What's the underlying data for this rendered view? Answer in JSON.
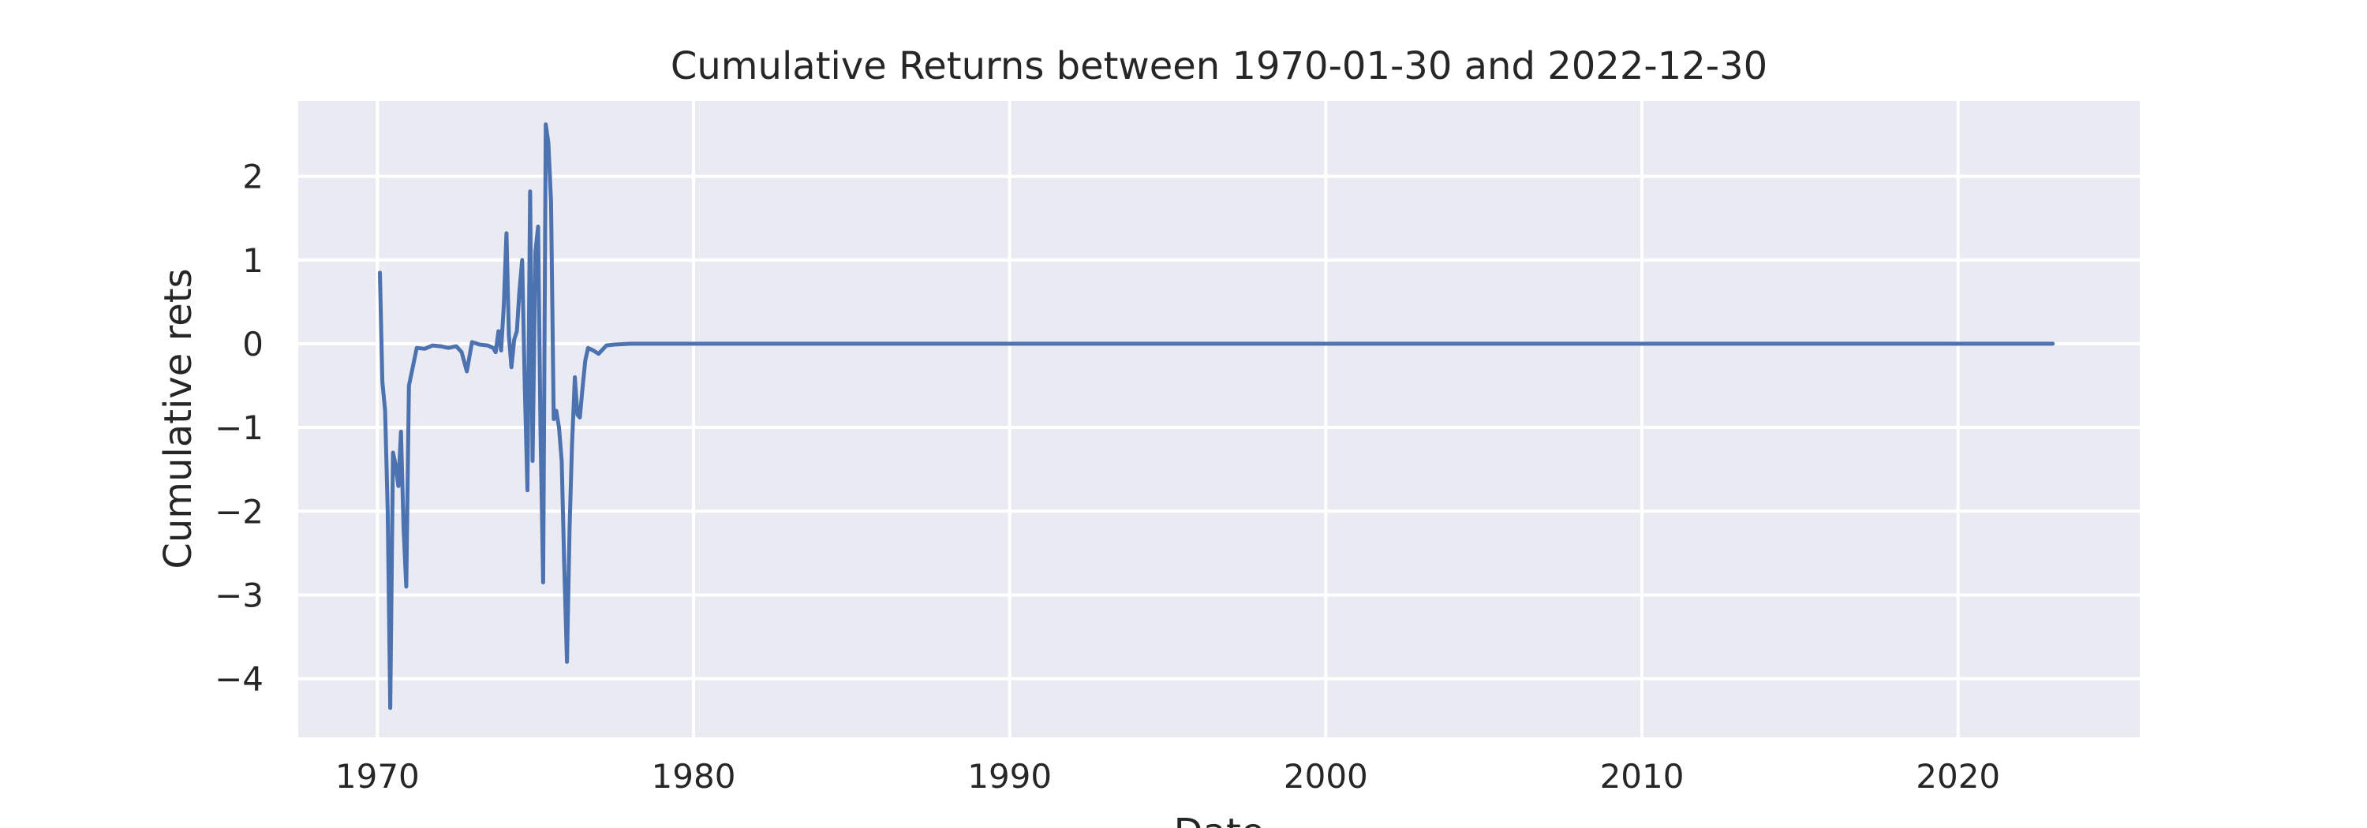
{
  "colors": {
    "plot_background": "#eaeaf2",
    "grid": "#ffffff",
    "series": "#4c72b0",
    "text": "#262626"
  },
  "chart_data": {
    "type": "line",
    "title": "Cumulative Returns between 1970-01-30 and 2022-12-30",
    "xlabel": "Date",
    "ylabel": "Cumulative rets",
    "x_scale": "date",
    "xlim": [
      "1967-07-01",
      "2025-10-01"
    ],
    "ylim": [
      -4.7,
      2.9
    ],
    "grid": true,
    "x_ticks": [
      {
        "value": "1970-01-01",
        "label": "1970"
      },
      {
        "value": "1980-01-01",
        "label": "1980"
      },
      {
        "value": "1990-01-01",
        "label": "1990"
      },
      {
        "value": "2000-01-01",
        "label": "2000"
      },
      {
        "value": "2010-01-01",
        "label": "2010"
      },
      {
        "value": "2020-01-01",
        "label": "2020"
      }
    ],
    "y_ticks": [
      {
        "value": 2,
        "label": "2"
      },
      {
        "value": 1,
        "label": "1"
      },
      {
        "value": 0,
        "label": "0"
      },
      {
        "value": -1,
        "label": "−1"
      },
      {
        "value": -2,
        "label": "−2"
      },
      {
        "value": -3,
        "label": "−3"
      },
      {
        "value": -4,
        "label": "−4"
      }
    ],
    "series": [
      {
        "points": [
          [
            "1970-01-30",
            0.85
          ],
          [
            "1970-02-27",
            -0.45
          ],
          [
            "1970-03-31",
            -0.8
          ],
          [
            "1970-04-30",
            -2.0
          ],
          [
            "1970-05-29",
            -4.35
          ],
          [
            "1970-06-30",
            -1.3
          ],
          [
            "1970-07-31",
            -1.45
          ],
          [
            "1970-08-31",
            -1.7
          ],
          [
            "1970-09-30",
            -1.05
          ],
          [
            "1970-10-30",
            -2.2
          ],
          [
            "1970-11-30",
            -2.9
          ],
          [
            "1970-12-31",
            -0.5
          ],
          [
            "1971-03-31",
            -0.05
          ],
          [
            "1971-06-30",
            -0.06
          ],
          [
            "1971-09-30",
            -0.02
          ],
          [
            "1971-12-31",
            -0.03
          ],
          [
            "1972-03-31",
            -0.05
          ],
          [
            "1972-06-30",
            -0.03
          ],
          [
            "1972-08-31",
            -0.1
          ],
          [
            "1972-10-31",
            -0.33
          ],
          [
            "1972-12-29",
            0.02
          ],
          [
            "1973-03-30",
            -0.01
          ],
          [
            "1973-06-29",
            -0.02
          ],
          [
            "1973-08-31",
            -0.05
          ],
          [
            "1973-09-28",
            -0.1
          ],
          [
            "1973-10-31",
            0.15
          ],
          [
            "1973-11-30",
            -0.08
          ],
          [
            "1973-12-31",
            0.45
          ],
          [
            "1974-01-31",
            1.32
          ],
          [
            "1974-02-28",
            0.1
          ],
          [
            "1974-03-29",
            -0.28
          ],
          [
            "1974-04-30",
            0.05
          ],
          [
            "1974-05-31",
            0.15
          ],
          [
            "1974-06-28",
            0.6
          ],
          [
            "1974-07-31",
            1.0
          ],
          [
            "1974-08-30",
            -0.5
          ],
          [
            "1974-09-30",
            -1.75
          ],
          [
            "1974-10-31",
            1.82
          ],
          [
            "1974-11-29",
            -1.4
          ],
          [
            "1974-12-31",
            1.1
          ],
          [
            "1975-01-31",
            1.4
          ],
          [
            "1975-02-28",
            -1.0
          ],
          [
            "1975-03-31",
            -2.85
          ],
          [
            "1975-04-30",
            2.62
          ],
          [
            "1975-05-30",
            2.4
          ],
          [
            "1975-06-30",
            1.7
          ],
          [
            "1975-07-31",
            -0.9
          ],
          [
            "1975-08-29",
            -0.8
          ],
          [
            "1975-09-30",
            -1.0
          ],
          [
            "1975-10-31",
            -1.4
          ],
          [
            "1975-11-28",
            -2.6
          ],
          [
            "1975-12-31",
            -3.8
          ],
          [
            "1976-01-30",
            -2.2
          ],
          [
            "1976-02-27",
            -1.2
          ],
          [
            "1976-03-31",
            -0.4
          ],
          [
            "1976-04-30",
            -0.85
          ],
          [
            "1976-05-28",
            -0.88
          ],
          [
            "1976-06-30",
            -0.5
          ],
          [
            "1976-07-30",
            -0.2
          ],
          [
            "1976-08-31",
            -0.05
          ],
          [
            "1976-10-29",
            -0.08
          ],
          [
            "1976-12-31",
            -0.12
          ],
          [
            "1977-03-31",
            -0.02
          ],
          [
            "1977-06-30",
            -0.01
          ],
          [
            "1977-12-30",
            0.0
          ],
          [
            "1978-12-29",
            0.0
          ],
          [
            "1985-12-31",
            0.0
          ],
          [
            "1995-12-29",
            0.0
          ],
          [
            "2005-12-30",
            0.0
          ],
          [
            "2015-12-31",
            0.0
          ],
          [
            "2022-12-30",
            0.0
          ]
        ]
      }
    ]
  }
}
